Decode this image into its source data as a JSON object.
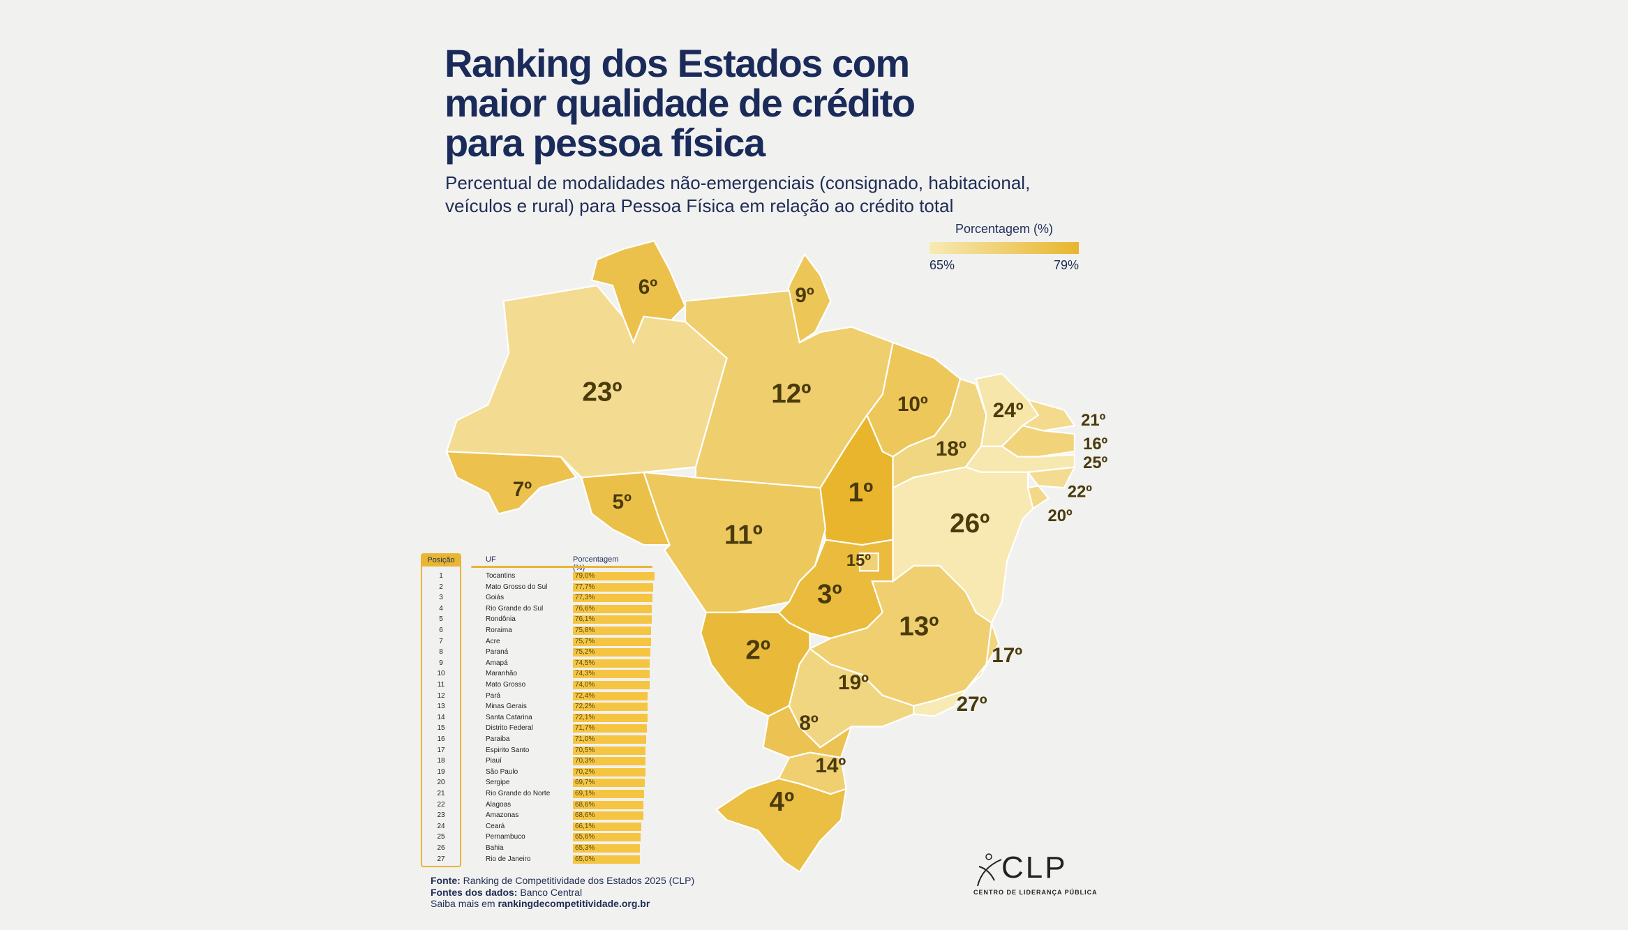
{
  "title": {
    "line1": "Ranking dos Estados com",
    "line2": "maior qualidade de crédito",
    "line3": "para pessoa física"
  },
  "subtitle": {
    "line1": "Percentual de modalidades não-emergenciais (consignado, habitacional,",
    "line2": "veículos e rural) para Pessoa Física em relação ao crédito total"
  },
  "legend": {
    "title": "Porcentagem (%)",
    "min_label": "65%",
    "max_label": "79%",
    "min": 65,
    "max": 79,
    "color_min": "#f7eab4",
    "color_max": "#e8b52d"
  },
  "chart_data": {
    "type": "table",
    "headers": [
      "Posição",
      "UF",
      "Porcentagem (%)"
    ],
    "rows": [
      {
        "pos": "1",
        "uf": "Tocantins",
        "code": "TO",
        "value": 79.0,
        "label": "79,0%",
        "rank": "1º"
      },
      {
        "pos": "2",
        "uf": "Mato Grosso do Sul",
        "code": "MS",
        "value": 77.7,
        "label": "77,7%",
        "rank": "2º"
      },
      {
        "pos": "3",
        "uf": "Goiás",
        "code": "GO",
        "value": 77.3,
        "label": "77,3%",
        "rank": "3º"
      },
      {
        "pos": "4",
        "uf": "Rio Grande do Sul",
        "code": "RS",
        "value": 76.6,
        "label": "76,6%",
        "rank": "4º"
      },
      {
        "pos": "5",
        "uf": "Rondônia",
        "code": "RO",
        "value": 76.1,
        "label": "76,1%",
        "rank": "5º"
      },
      {
        "pos": "6",
        "uf": "Roraima",
        "code": "RR",
        "value": 75.8,
        "label": "75,8%",
        "rank": "6º"
      },
      {
        "pos": "7",
        "uf": "Acre",
        "code": "AC",
        "value": 75.7,
        "label": "75,7%",
        "rank": "7º"
      },
      {
        "pos": "8",
        "uf": "Paraná",
        "code": "PR",
        "value": 75.2,
        "label": "75,2%",
        "rank": "8º"
      },
      {
        "pos": "9",
        "uf": "Amapá",
        "code": "AP",
        "value": 74.5,
        "label": "74,5%",
        "rank": "9º"
      },
      {
        "pos": "10",
        "uf": "Maranhão",
        "code": "MA",
        "value": 74.3,
        "label": "74,3%",
        "rank": "10º"
      },
      {
        "pos": "11",
        "uf": "Mato Grosso",
        "code": "MT",
        "value": 74.0,
        "label": "74,0%",
        "rank": "11º"
      },
      {
        "pos": "12",
        "uf": "Pará",
        "code": "PA",
        "value": 72.4,
        "label": "72,4%",
        "rank": "12º"
      },
      {
        "pos": "13",
        "uf": "Minas Gerais",
        "code": "MG",
        "value": 72.2,
        "label": "72,2%",
        "rank": "13º"
      },
      {
        "pos": "14",
        "uf": "Santa Catarina",
        "code": "SC",
        "value": 72.1,
        "label": "72,1%",
        "rank": "14º"
      },
      {
        "pos": "15",
        "uf": "Distrito Federal",
        "code": "DF",
        "value": 71.7,
        "label": "71,7%",
        "rank": "15º"
      },
      {
        "pos": "16",
        "uf": "Paraiba",
        "code": "PB",
        "value": 71.0,
        "label": "71,0%",
        "rank": "16º"
      },
      {
        "pos": "17",
        "uf": "Espirito Santo",
        "code": "ES",
        "value": 70.5,
        "label": "70,5%",
        "rank": "17º"
      },
      {
        "pos": "18",
        "uf": "Piauí",
        "code": "PI",
        "value": 70.3,
        "label": "70,3%",
        "rank": "18º"
      },
      {
        "pos": "19",
        "uf": "São Paulo",
        "code": "SP",
        "value": 70.2,
        "label": "70,2%",
        "rank": "19º"
      },
      {
        "pos": "20",
        "uf": "Sergipe",
        "code": "SE",
        "value": 69.7,
        "label": "69,7%",
        "rank": "20º"
      },
      {
        "pos": "21",
        "uf": "Rio Grande do Norte",
        "code": "RN",
        "value": 69.1,
        "label": "69,1%",
        "rank": "21º"
      },
      {
        "pos": "22",
        "uf": "Alagoas",
        "code": "AL",
        "value": 68.6,
        "label": "68,6%",
        "rank": "22º"
      },
      {
        "pos": "23",
        "uf": "Amazonas",
        "code": "AM",
        "value": 68.6,
        "label": "68,6%",
        "rank": "23º"
      },
      {
        "pos": "24",
        "uf": "Ceará",
        "code": "CE",
        "value": 66.1,
        "label": "66,1%",
        "rank": "24º"
      },
      {
        "pos": "25",
        "uf": "Pernambuco",
        "code": "PE",
        "value": 65.6,
        "label": "65,6%",
        "rank": "25º"
      },
      {
        "pos": "26",
        "uf": "Bahia",
        "code": "BA",
        "value": 65.3,
        "label": "65,3%",
        "rank": "26º"
      },
      {
        "pos": "27",
        "uf": "Rio de Janeiro",
        "code": "RJ",
        "value": 65.0,
        "label": "65,0%",
        "rank": "27º"
      }
    ]
  },
  "source": {
    "fonte_label": "Fonte:",
    "fonte": " Ranking de Competitividade dos Estados 2025 (CLP)",
    "dados_label": "Fontes dos dados:",
    "dados": " Banco Central",
    "saiba": "Saiba mais em ",
    "link": "rankingdecompetitividade.org.br"
  },
  "logo": {
    "name": "CLP",
    "subtitle": "CENTRO DE LIDERANÇA PÚBLICA"
  }
}
